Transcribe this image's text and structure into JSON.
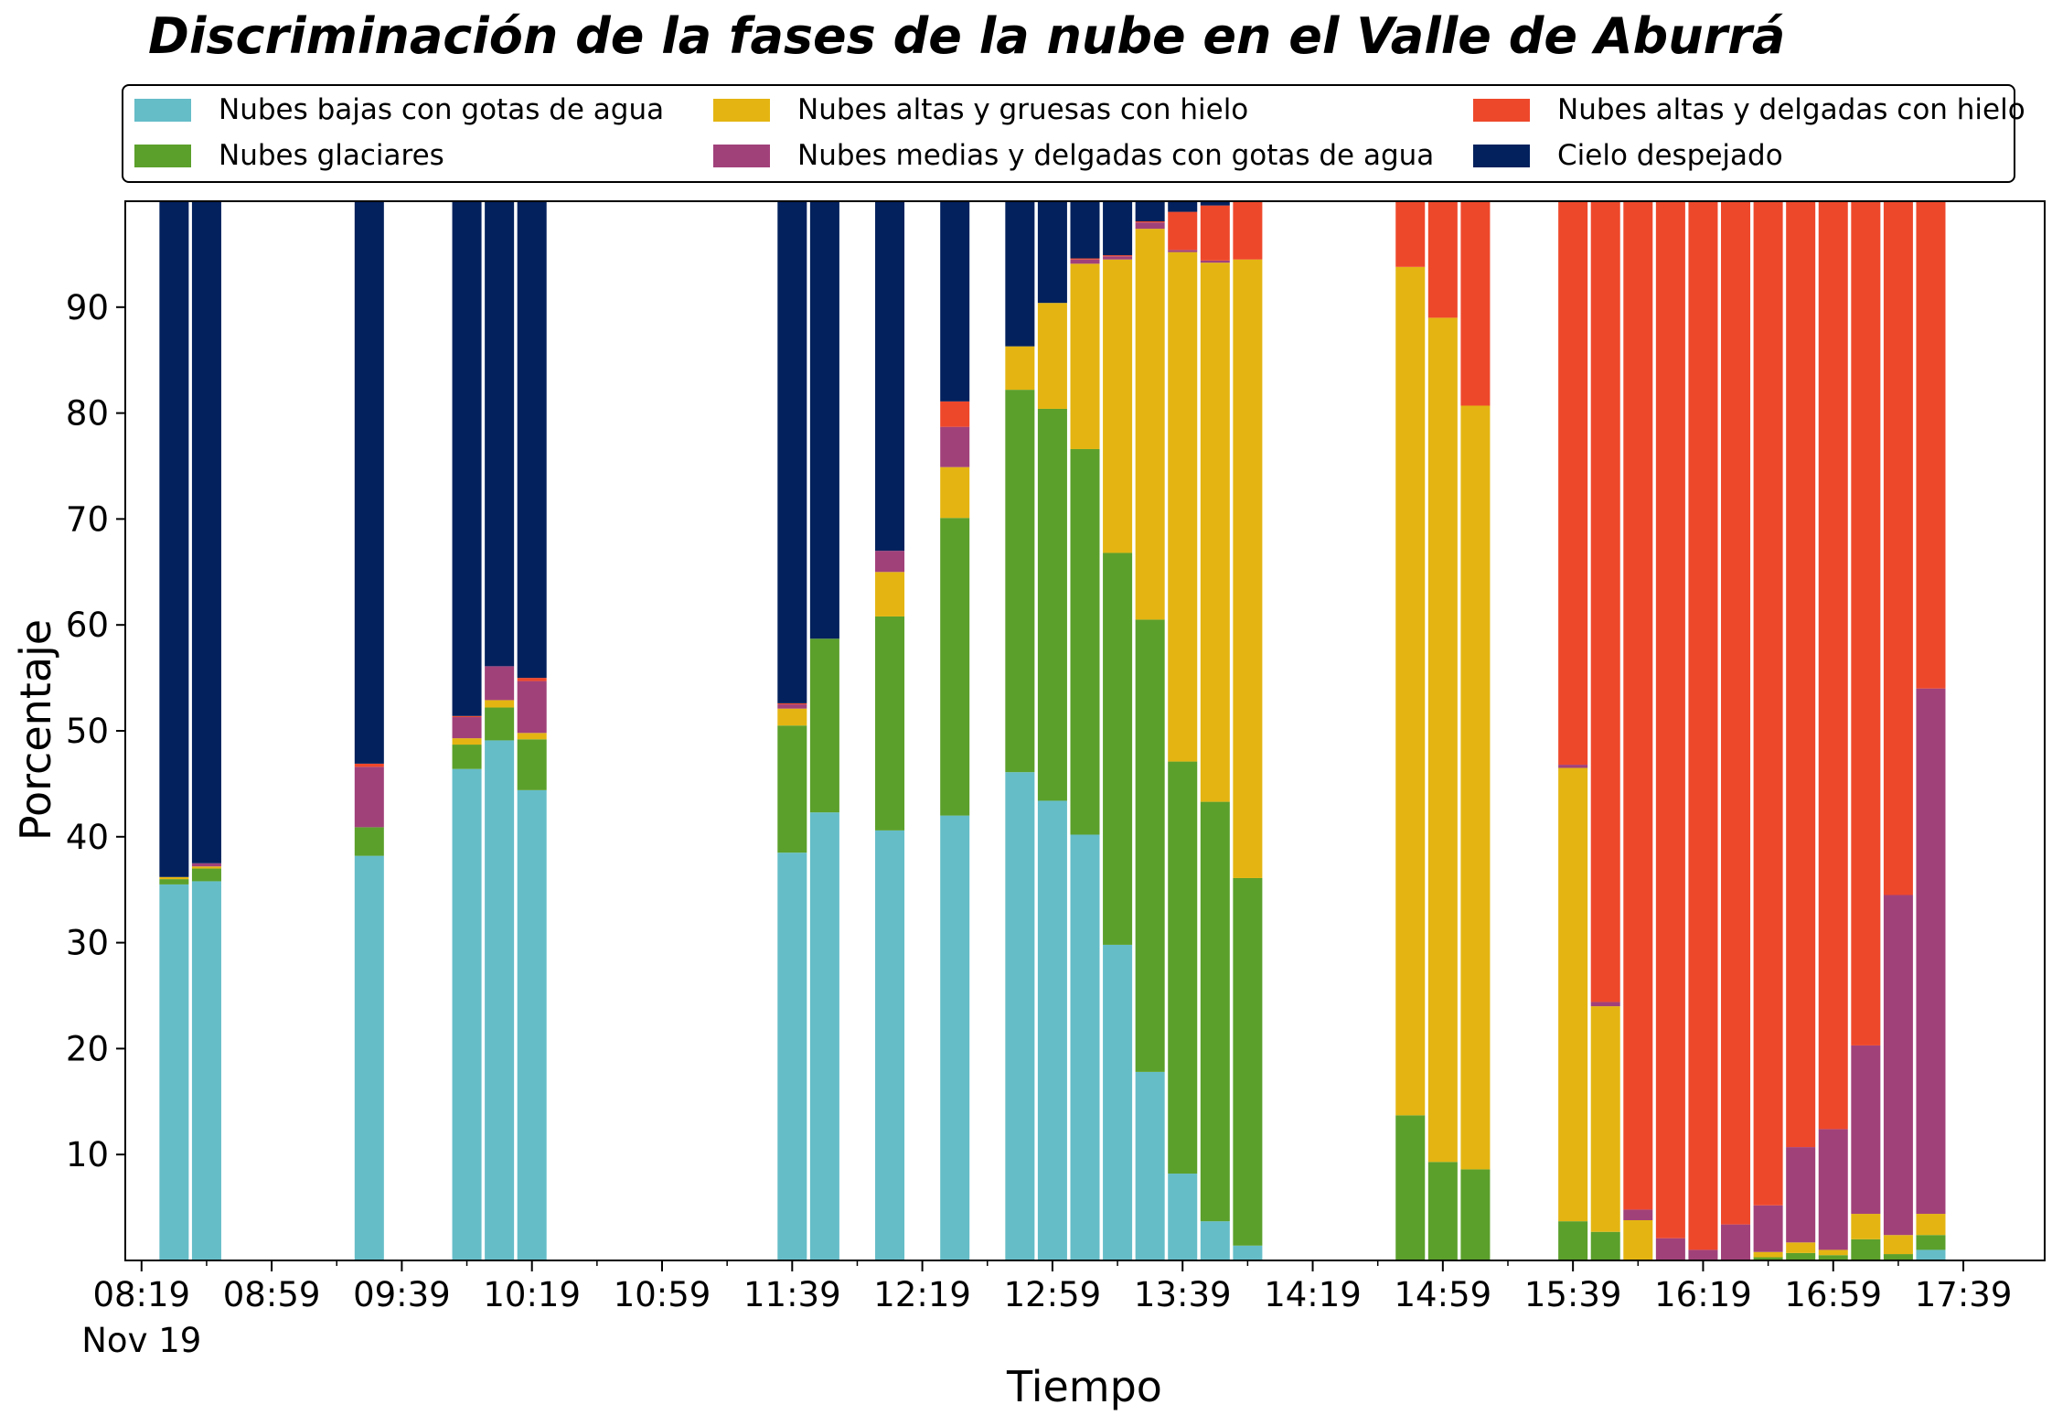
{
  "chart_data": {
    "type": "bar",
    "stacked": true,
    "title": "Discriminación de la fases de la nube en el Valle de Aburrá",
    "xlabel": "Tiempo",
    "ylabel": "Porcentaje",
    "ylim": [
      0,
      100
    ],
    "yticks": [
      10,
      20,
      30,
      40,
      50,
      60,
      70,
      80,
      90
    ],
    "xlim": [
      "08:14",
      "18:04"
    ],
    "xticks": [
      {
        "time": "08:19",
        "label": "08:19",
        "sublabel": "Nov 19"
      },
      {
        "time": "08:59",
        "label": "08:59"
      },
      {
        "time": "09:39",
        "label": "09:39"
      },
      {
        "time": "10:19",
        "label": "10:19"
      },
      {
        "time": "10:59",
        "label": "10:59"
      },
      {
        "time": "11:39",
        "label": "11:39"
      },
      {
        "time": "12:19",
        "label": "12:19"
      },
      {
        "time": "12:59",
        "label": "12:59"
      },
      {
        "time": "13:39",
        "label": "13:39"
      },
      {
        "time": "14:19",
        "label": "14:19"
      },
      {
        "time": "14:59",
        "label": "14:59"
      },
      {
        "time": "15:39",
        "label": "15:39"
      },
      {
        "time": "16:19",
        "label": "16:19"
      },
      {
        "time": "16:59",
        "label": "16:59"
      },
      {
        "time": "17:39",
        "label": "17:39"
      }
    ],
    "grid": false,
    "legend_position": "top",
    "series": [
      {
        "name": "Nubes bajas con gotas de agua",
        "color": "#65bdc8"
      },
      {
        "name": "Nubes glaciares",
        "color": "#5ba02b"
      },
      {
        "name": "Nubes altas y gruesas con hielo",
        "color": "#e4b512"
      },
      {
        "name": "Nubes medias y delgadas con gotas de agua",
        "color": "#a1417a"
      },
      {
        "name": "Nubes altas y delgadas con hielo",
        "color": "#ee482b"
      },
      {
        "name": "Cielo despejado",
        "color": "#03215d"
      }
    ],
    "legend_order": [
      0,
      2,
      4,
      1,
      3,
      5
    ],
    "x": [
      "08:29",
      "08:39",
      "09:29",
      "09:59",
      "10:09",
      "10:19",
      "11:39",
      "11:49",
      "12:09",
      "12:29",
      "12:49",
      "12:59",
      "13:09",
      "13:19",
      "13:29",
      "13:39",
      "13:49",
      "13:59",
      "14:49",
      "14:59",
      "15:09",
      "15:39",
      "15:49",
      "15:59",
      "16:09",
      "16:19",
      "16:29",
      "16:39",
      "16:49",
      "16:59",
      "17:09",
      "17:19",
      "17:29"
    ],
    "values": [
      [
        35.5,
        0.5,
        0.2,
        0.0,
        0.0,
        63.8
      ],
      [
        35.8,
        1.2,
        0.2,
        0.3,
        0.0,
        62.5
      ],
      [
        38.2,
        2.7,
        0.0,
        5.7,
        0.3,
        53.1
      ],
      [
        46.4,
        2.3,
        0.6,
        2.0,
        0.1,
        48.6
      ],
      [
        49.1,
        3.1,
        0.7,
        3.2,
        0.0,
        43.9
      ],
      [
        44.4,
        4.8,
        0.6,
        4.9,
        0.3,
        45.0
      ],
      [
        38.5,
        12.0,
        1.6,
        0.4,
        0.1,
        47.4
      ],
      [
        42.3,
        16.4,
        0.0,
        0.0,
        0.0,
        41.3
      ],
      [
        40.6,
        20.2,
        4.2,
        2.0,
        0.0,
        33.0
      ],
      [
        42.0,
        28.1,
        4.8,
        3.8,
        2.4,
        18.9
      ],
      [
        46.1,
        36.1,
        4.1,
        0.0,
        0.0,
        13.7
      ],
      [
        43.4,
        37.0,
        10.0,
        0.0,
        0.0,
        9.6
      ],
      [
        40.2,
        36.4,
        17.5,
        0.4,
        0.1,
        5.4
      ],
      [
        29.8,
        37.0,
        27.7,
        0.3,
        0.1,
        5.1
      ],
      [
        17.8,
        42.7,
        36.9,
        0.6,
        0.1,
        1.9
      ],
      [
        8.2,
        38.9,
        48.1,
        0.2,
        3.6,
        1.0
      ],
      [
        3.7,
        39.6,
        50.9,
        0.2,
        5.2,
        0.4
      ],
      [
        1.4,
        34.7,
        58.4,
        0.0,
        5.5,
        0.0
      ],
      [
        0.0,
        13.7,
        80.1,
        0.0,
        6.2,
        0.0
      ],
      [
        0.0,
        9.3,
        79.7,
        0.0,
        11.0,
        0.0
      ],
      [
        0.0,
        8.6,
        72.1,
        0.0,
        19.3,
        0.0
      ],
      [
        0.0,
        3.7,
        42.8,
        0.3,
        53.2,
        0.0
      ],
      [
        0.0,
        2.7,
        21.3,
        0.4,
        75.6,
        0.0
      ],
      [
        0.0,
        0.0,
        3.8,
        1.0,
        95.2,
        0.0
      ],
      [
        0.0,
        0.0,
        0.0,
        2.1,
        97.9,
        0.0
      ],
      [
        0.0,
        0.0,
        0.0,
        1.0,
        99.0,
        0.0
      ],
      [
        0.0,
        0.0,
        0.0,
        3.4,
        96.6,
        0.0
      ],
      [
        0.0,
        0.3,
        0.5,
        4.4,
        94.8,
        0.0
      ],
      [
        0.0,
        0.7,
        1.0,
        9.0,
        89.3,
        0.0
      ],
      [
        0.0,
        0.5,
        0.5,
        11.4,
        87.6,
        0.0
      ],
      [
        0.0,
        2.0,
        2.4,
        15.9,
        79.7,
        0.0
      ],
      [
        0.0,
        0.6,
        1.8,
        32.1,
        65.5,
        0.0
      ],
      [
        1.0,
        1.4,
        2.0,
        49.6,
        46.0,
        0.0
      ]
    ]
  }
}
